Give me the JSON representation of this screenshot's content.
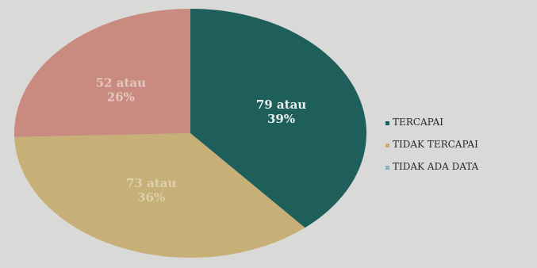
{
  "chart_data": {
    "type": "pie",
    "title": "",
    "slices": [
      {
        "name": "TERCAPAI",
        "value": 79,
        "percent": "39%",
        "label_line1": "79 atau",
        "label_line2": "39%",
        "color": "#1f5f5b",
        "label_color": "#e8f0ee"
      },
      {
        "name": "TIDAK TERCAPAI",
        "value": 73,
        "percent": "36%",
        "label_line1": "73 atau",
        "label_line2": "36%",
        "color": "#c7b077",
        "label_color": "#ddd0a8"
      },
      {
        "name": "TIDAK ADA DATA",
        "value": 52,
        "percent": "26%",
        "label_line1": "52 atau",
        "label_line2": "26%",
        "color": "#c98b80",
        "label_color": "#e6c7bf"
      }
    ],
    "legend": {
      "placement": "right",
      "entries": [
        "TERCAPAI",
        "TIDAK TERCAPAI",
        "TIDAK ADA DATA"
      ],
      "marker_colors": [
        "#1f5f5b",
        "#c7b077",
        "#8fb3b8"
      ]
    }
  }
}
